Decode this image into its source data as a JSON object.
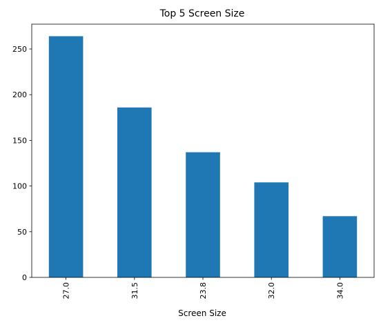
{
  "chart_data": {
    "type": "bar",
    "title": "Top 5 Screen Size",
    "xlabel": "Screen Size",
    "ylabel": "",
    "categories": [
      "27.0",
      "31.5",
      "23.8",
      "32.0",
      "34.0"
    ],
    "values": [
      264,
      186,
      137,
      104,
      67
    ],
    "ylim": [
      0,
      277.2
    ],
    "yticks": [
      0,
      50,
      100,
      150,
      200,
      250
    ],
    "bar_color": "#1f77b4",
    "grid": false,
    "legend": "none"
  }
}
